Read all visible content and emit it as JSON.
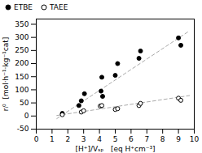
{
  "chart_data": {
    "type": "scatter",
    "xlabel": "[H⁺]/Vₛₚ   [eq H⁺cm⁻³]",
    "ylabel": "rᵢ⁰  [mol·h⁻¹·kg⁻¹cat]",
    "xlim": [
      0,
      10
    ],
    "ylim": [
      -50,
      370
    ],
    "xticks": [
      0,
      1,
      2,
      3,
      4,
      5,
      6,
      7,
      8,
      9,
      10
    ],
    "yticks": [
      -50,
      0,
      50,
      100,
      150,
      200,
      250,
      300,
      350
    ],
    "grid": false,
    "legend": "upper left",
    "series": [
      {
        "type": "line",
        "color": "#aaaaaa",
        "line_style": "dashed",
        "x": [
          1.3,
          9.7
        ],
        "values": [
          -10,
          325
        ]
      },
      {
        "type": "line",
        "color": "#aaaaaa",
        "line_style": "dashed",
        "x": [
          1.3,
          9.7
        ],
        "values": [
          2,
          78
        ]
      },
      {
        "name": "ETBE",
        "type": "scatter",
        "color": "black",
        "marker": "filled_circle",
        "x": [
          1.65,
          2.7,
          2.85,
          3.05,
          4.1,
          4.15,
          4.2,
          5.0,
          5.15,
          6.5,
          6.6,
          9.0,
          9.15
        ],
        "values": [
          10,
          40,
          58,
          85,
          95,
          148,
          75,
          155,
          200,
          220,
          248,
          298,
          270
        ]
      },
      {
        "name": "TAEE",
        "type": "scatter",
        "color": "black",
        "marker": "open_circle",
        "x": [
          1.65,
          2.85,
          3.0,
          4.05,
          4.15,
          5.0,
          5.15,
          6.5,
          6.6,
          9.0,
          9.15
        ],
        "values": [
          5,
          15,
          20,
          38,
          40,
          25,
          28,
          40,
          48,
          68,
          60
        ]
      }
    ]
  }
}
